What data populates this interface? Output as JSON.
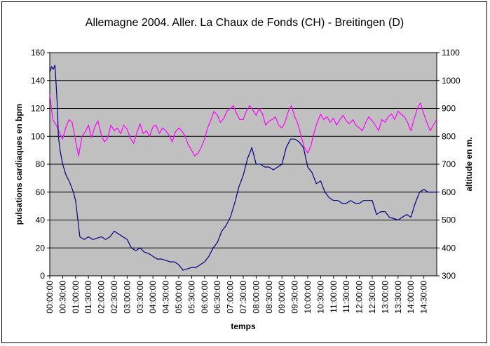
{
  "chart_data": {
    "type": "line",
    "title": "Allemagne 2004. Aller. La Chaux de Fonds (CH) - Breitingen (D)",
    "xlabel": "temps",
    "ylabel": "pulsations cardiaques en bpm",
    "y2label": "altitude en m.",
    "ylim": [
      0,
      160
    ],
    "y2lim": [
      300,
      1100
    ],
    "yticks": [
      "0",
      "20",
      "40",
      "60",
      "80",
      "100",
      "120",
      "140",
      "160"
    ],
    "y2ticks": [
      "300",
      "400",
      "500",
      "600",
      "700",
      "800",
      "900",
      "1000",
      "1100"
    ],
    "xticks": [
      "00:00:00",
      "00:30:00",
      "01:00:00",
      "01:30:00",
      "02:00:00",
      "02:30:00",
      "03:00:00",
      "03:30:00",
      "04:00:00",
      "04:30:00",
      "05:00:00",
      "05:30:00",
      "06:00:00",
      "06:30:00",
      "07:00:00",
      "07:30:00",
      "08:00:00",
      "08:30:00",
      "09:00:00",
      "09:30:00",
      "10:00:00",
      "10:30:00",
      "11:00:00",
      "11:30:00",
      "12:00:00",
      "12:30:00",
      "13:00:00",
      "13:30:00",
      "14:00:00",
      "14:30:00"
    ],
    "grid": true,
    "plot_background": "#c0c0c0",
    "series": [
      {
        "axis": "left",
        "color": "#ff00ff",
        "x_minutes": [
          0,
          7,
          15,
          22,
          30,
          37,
          45,
          52,
          60,
          67,
          75,
          82,
          90,
          97,
          105,
          112,
          120,
          127,
          135,
          142,
          150,
          157,
          165,
          172,
          180,
          187,
          195,
          202,
          210,
          217,
          225,
          232,
          240,
          247,
          255,
          262,
          270,
          277,
          285,
          292,
          300,
          307,
          315,
          322,
          330,
          337,
          345,
          352,
          360,
          367,
          375,
          382,
          390,
          397,
          405,
          412,
          420,
          427,
          435,
          442,
          450,
          457,
          465,
          472,
          480,
          487,
          495,
          502,
          510,
          517,
          525,
          532,
          540,
          547,
          555,
          562,
          570,
          577,
          585,
          592,
          600,
          607,
          615,
          622,
          630,
          637,
          645,
          652,
          660,
          667,
          675,
          682,
          690,
          697,
          705,
          712,
          720,
          727,
          735,
          742,
          750,
          757,
          765,
          772,
          780,
          787,
          795,
          802,
          810,
          817,
          825,
          832,
          840,
          847,
          855,
          862,
          870,
          877,
          885,
          892,
          900
        ],
        "values": [
          130,
          112,
          108,
          103,
          98,
          106,
          112,
          110,
          97,
          86,
          100,
          103,
          108,
          99,
          107,
          111,
          101,
          96,
          99,
          108,
          104,
          106,
          102,
          108,
          105,
          99,
          95,
          102,
          109,
          102,
          104,
          100,
          107,
          108,
          102,
          106,
          104,
          101,
          96,
          103,
          106,
          104,
          100,
          94,
          90,
          86,
          88,
          92,
          98,
          106,
          112,
          118,
          115,
          110,
          113,
          118,
          120,
          122,
          116,
          112,
          112,
          118,
          122,
          119,
          115,
          120,
          116,
          108,
          111,
          112,
          114,
          108,
          106,
          110,
          118,
          122,
          114,
          109,
          100,
          92,
          88,
          93,
          103,
          110,
          116,
          112,
          114,
          110,
          113,
          108,
          112,
          115,
          111,
          109,
          112,
          108,
          106,
          104,
          110,
          114,
          111,
          108,
          104,
          112,
          110,
          114,
          116,
          112,
          118,
          116,
          114,
          110,
          104,
          112,
          120,
          124,
          116,
          110,
          104,
          108,
          112
        ]
      },
      {
        "axis": "right",
        "color": "#000080",
        "x_minutes": [
          0,
          4,
          8,
          12,
          15,
          18,
          20,
          24,
          30,
          38,
          45,
          50,
          55,
          60,
          70,
          80,
          90,
          100,
          110,
          120,
          130,
          140,
          150,
          160,
          170,
          180,
          190,
          200,
          210,
          220,
          230,
          240,
          250,
          260,
          270,
          280,
          290,
          300,
          305,
          310,
          320,
          330,
          340,
          350,
          360,
          370,
          380,
          390,
          400,
          410,
          420,
          430,
          440,
          450,
          460,
          470,
          480,
          490,
          500,
          510,
          520,
          530,
          540,
          550,
          560,
          570,
          580,
          590,
          600,
          610,
          620,
          630,
          640,
          650,
          660,
          670,
          680,
          690,
          700,
          710,
          720,
          730,
          740,
          750,
          760,
          770,
          780,
          790,
          800,
          810,
          820,
          830,
          840,
          850,
          860,
          870,
          880,
          890,
          900
        ],
        "values": [
          1030,
          1050,
          1040,
          1055,
          980,
          900,
          800,
          750,
          700,
          660,
          640,
          620,
          600,
          570,
          440,
          430,
          440,
          430,
          435,
          440,
          430,
          440,
          460,
          450,
          440,
          430,
          400,
          390,
          400,
          385,
          380,
          370,
          360,
          360,
          355,
          350,
          350,
          340,
          330,
          320,
          325,
          330,
          330,
          340,
          350,
          370,
          400,
          420,
          460,
          480,
          510,
          560,
          620,
          660,
          720,
          760,
          700,
          700,
          690,
          690,
          680,
          690,
          700,
          760,
          790,
          790,
          780,
          760,
          690,
          670,
          630,
          640,
          600,
          580,
          570,
          570,
          560,
          560,
          570,
          560,
          560,
          570,
          570,
          570,
          520,
          530,
          530,
          510,
          505,
          500,
          510,
          520,
          510,
          560,
          600,
          610,
          600,
          600,
          600
        ]
      }
    ]
  }
}
